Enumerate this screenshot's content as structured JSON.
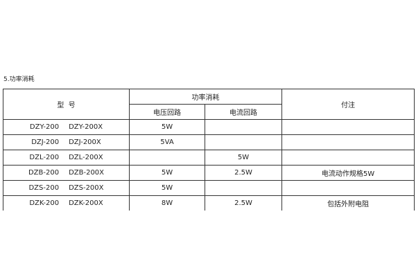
{
  "section_title": "5.功率消耗",
  "headers": {
    "model": "型  号",
    "power": "功率消耗",
    "voltage": "电压回路",
    "current": "电流回路",
    "note": "付注"
  },
  "rows": [
    {
      "model_a": "DZY-200",
      "model_b": "DZY-200X",
      "voltage": "5W",
      "current": "",
      "note": ""
    },
    {
      "model_a": "DZJ-200",
      "model_b": "DZJ-200X",
      "voltage": "5VA",
      "current": "",
      "note": ""
    },
    {
      "model_a": "DZL-200",
      "model_b": "DZL-200X",
      "voltage": "",
      "current": "5W",
      "note": ""
    },
    {
      "model_a": "DZB-200",
      "model_b": "DZB-200X",
      "voltage": "5W",
      "current": "2.5W",
      "note": "电流动作规格5W"
    },
    {
      "model_a": "DZS-200",
      "model_b": "DZS-200X",
      "voltage": "5W",
      "current": "",
      "note": ""
    },
    {
      "model_a": "DZK-200",
      "model_b": "DZK-200X",
      "voltage": "8W",
      "current": "2.5W",
      "note": "包括外附电阻"
    }
  ]
}
